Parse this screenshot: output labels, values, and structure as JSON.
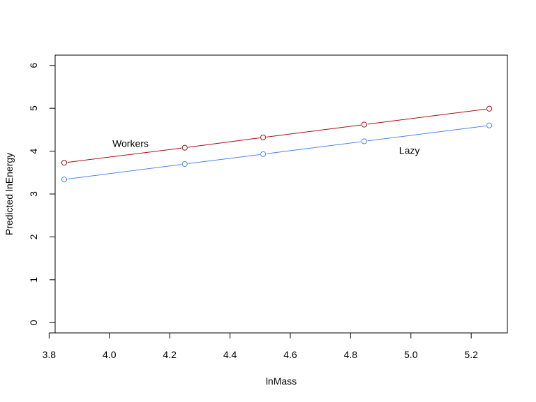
{
  "chart_data": {
    "type": "line",
    "title": "",
    "xlabel": "lnMass",
    "ylabel": "Predicted lnEnergy",
    "xlim": [
      3.82,
      5.32
    ],
    "ylim": [
      -0.24,
      6.24
    ],
    "xticks": [
      3.8,
      4.0,
      4.2,
      4.4,
      4.6,
      4.8,
      5.0,
      5.2
    ],
    "xtick_labels": [
      "3.8",
      "4.0",
      "4.2",
      "4.4",
      "4.6",
      "4.8",
      "5.0",
      "5.2"
    ],
    "yticks": [
      0,
      1,
      2,
      3,
      4,
      5,
      6
    ],
    "ytick_labels": [
      "0",
      "1",
      "2",
      "3",
      "4",
      "5",
      "6"
    ],
    "grid": false,
    "x": [
      3.85,
      4.25,
      4.51,
      4.845,
      5.26
    ],
    "series": [
      {
        "name": "Workers",
        "color": "#a50f15",
        "values": [
          3.73,
          4.08,
          4.32,
          4.62,
          4.99
        ]
      },
      {
        "name": "Lazy",
        "color": "#4a86e8",
        "values": [
          3.34,
          3.7,
          3.93,
          4.23,
          4.6
        ]
      }
    ],
    "annotations": [
      {
        "text": "Workers",
        "x": 4.07,
        "y": 4.18
      },
      {
        "text": "Lazy",
        "x": 4.995,
        "y": 4.02
      }
    ]
  }
}
